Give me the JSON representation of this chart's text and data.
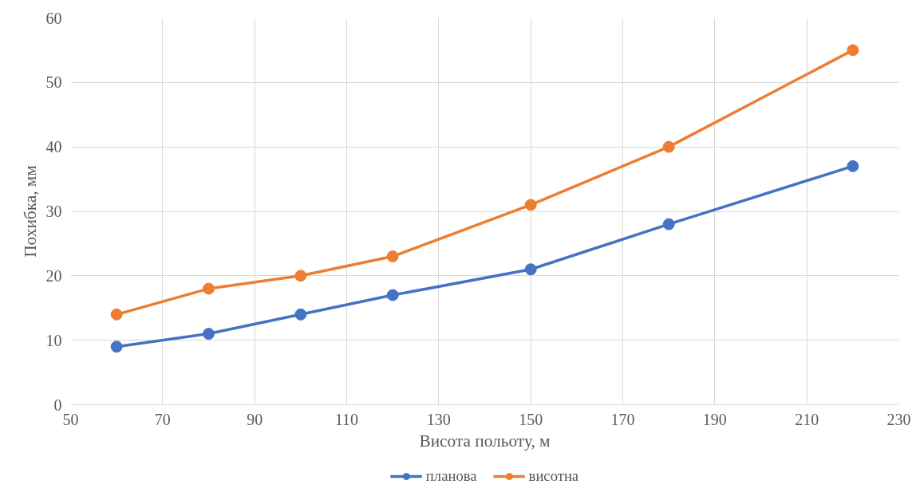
{
  "chart_data": {
    "type": "line",
    "xlabel": "Висота польоту, м",
    "ylabel": "Похибка, мм",
    "x": [
      60,
      80,
      100,
      120,
      150,
      180,
      220
    ],
    "series": [
      {
        "name": "планова",
        "color": "#4472c4",
        "values": [
          9,
          11,
          14,
          17,
          21,
          28,
          37
        ]
      },
      {
        "name": "висотна",
        "color": "#ed7d31",
        "values": [
          14,
          18,
          20,
          23,
          31,
          40,
          55
        ]
      }
    ],
    "xlim": [
      50,
      230
    ],
    "xticks": [
      50,
      70,
      90,
      110,
      130,
      150,
      170,
      190,
      210,
      230
    ],
    "ylim": [
      0,
      60
    ],
    "yticks": [
      0,
      10,
      20,
      30,
      40,
      50,
      60
    ],
    "grid": true,
    "legend": "bottom",
    "marker": "circle",
    "line_style": "solid"
  }
}
